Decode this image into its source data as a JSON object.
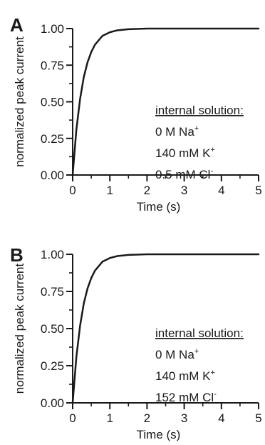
{
  "chart_data": [
    {
      "type": "line",
      "panel_label": "A",
      "xlabel": "Time (s)",
      "ylabel": "normalized peak current",
      "xlim": [
        0,
        5
      ],
      "ylim": [
        0,
        1
      ],
      "x_ticks": [
        "0",
        "1",
        "2",
        "3",
        "4",
        "5"
      ],
      "y_ticks": [
        "0.00",
        "0.25",
        "0.50",
        "0.75",
        "1.00"
      ],
      "series": [
        {
          "x": [
            0,
            0.1,
            0.2,
            0.3,
            0.4,
            0.5,
            0.6,
            0.8,
            1.0,
            1.2,
            1.5,
            2.0,
            2.5,
            3.0,
            4.0,
            5.0
          ],
          "y": [
            0,
            0.31,
            0.52,
            0.67,
            0.77,
            0.84,
            0.89,
            0.95,
            0.975,
            0.988,
            0.996,
            1.0,
            1.0,
            1.0,
            1.0,
            1.0
          ]
        }
      ],
      "annotation": {
        "heading": "internal solution:",
        "lines": [
          {
            "main": "0 M Na",
            "sup": "+"
          },
          {
            "main": "140 mM K",
            "sup": "+"
          },
          {
            "main": "0.5 mM Cl",
            "sup": "-"
          }
        ]
      }
    },
    {
      "type": "line",
      "panel_label": "B",
      "xlabel": "Time (s)",
      "ylabel": "normalized peak current",
      "xlim": [
        0,
        5
      ],
      "ylim": [
        0,
        1
      ],
      "x_ticks": [
        "0",
        "1",
        "2",
        "3",
        "4",
        "5"
      ],
      "y_ticks": [
        "0.00",
        "0.25",
        "0.50",
        "0.75",
        "1.00"
      ],
      "series": [
        {
          "x": [
            0,
            0.1,
            0.2,
            0.3,
            0.4,
            0.5,
            0.6,
            0.8,
            1.0,
            1.2,
            1.5,
            2.0,
            2.5,
            3.0,
            4.0,
            5.0
          ],
          "y": [
            0,
            0.31,
            0.52,
            0.67,
            0.77,
            0.84,
            0.89,
            0.95,
            0.975,
            0.988,
            0.996,
            1.0,
            1.0,
            1.0,
            1.0,
            1.0
          ]
        }
      ],
      "annotation": {
        "heading": "internal solution:",
        "lines": [
          {
            "main": "0 M Na",
            "sup": "+"
          },
          {
            "main": "140 mM K",
            "sup": "+"
          },
          {
            "main": "152 mM Cl",
            "sup": "-"
          }
        ]
      }
    }
  ]
}
